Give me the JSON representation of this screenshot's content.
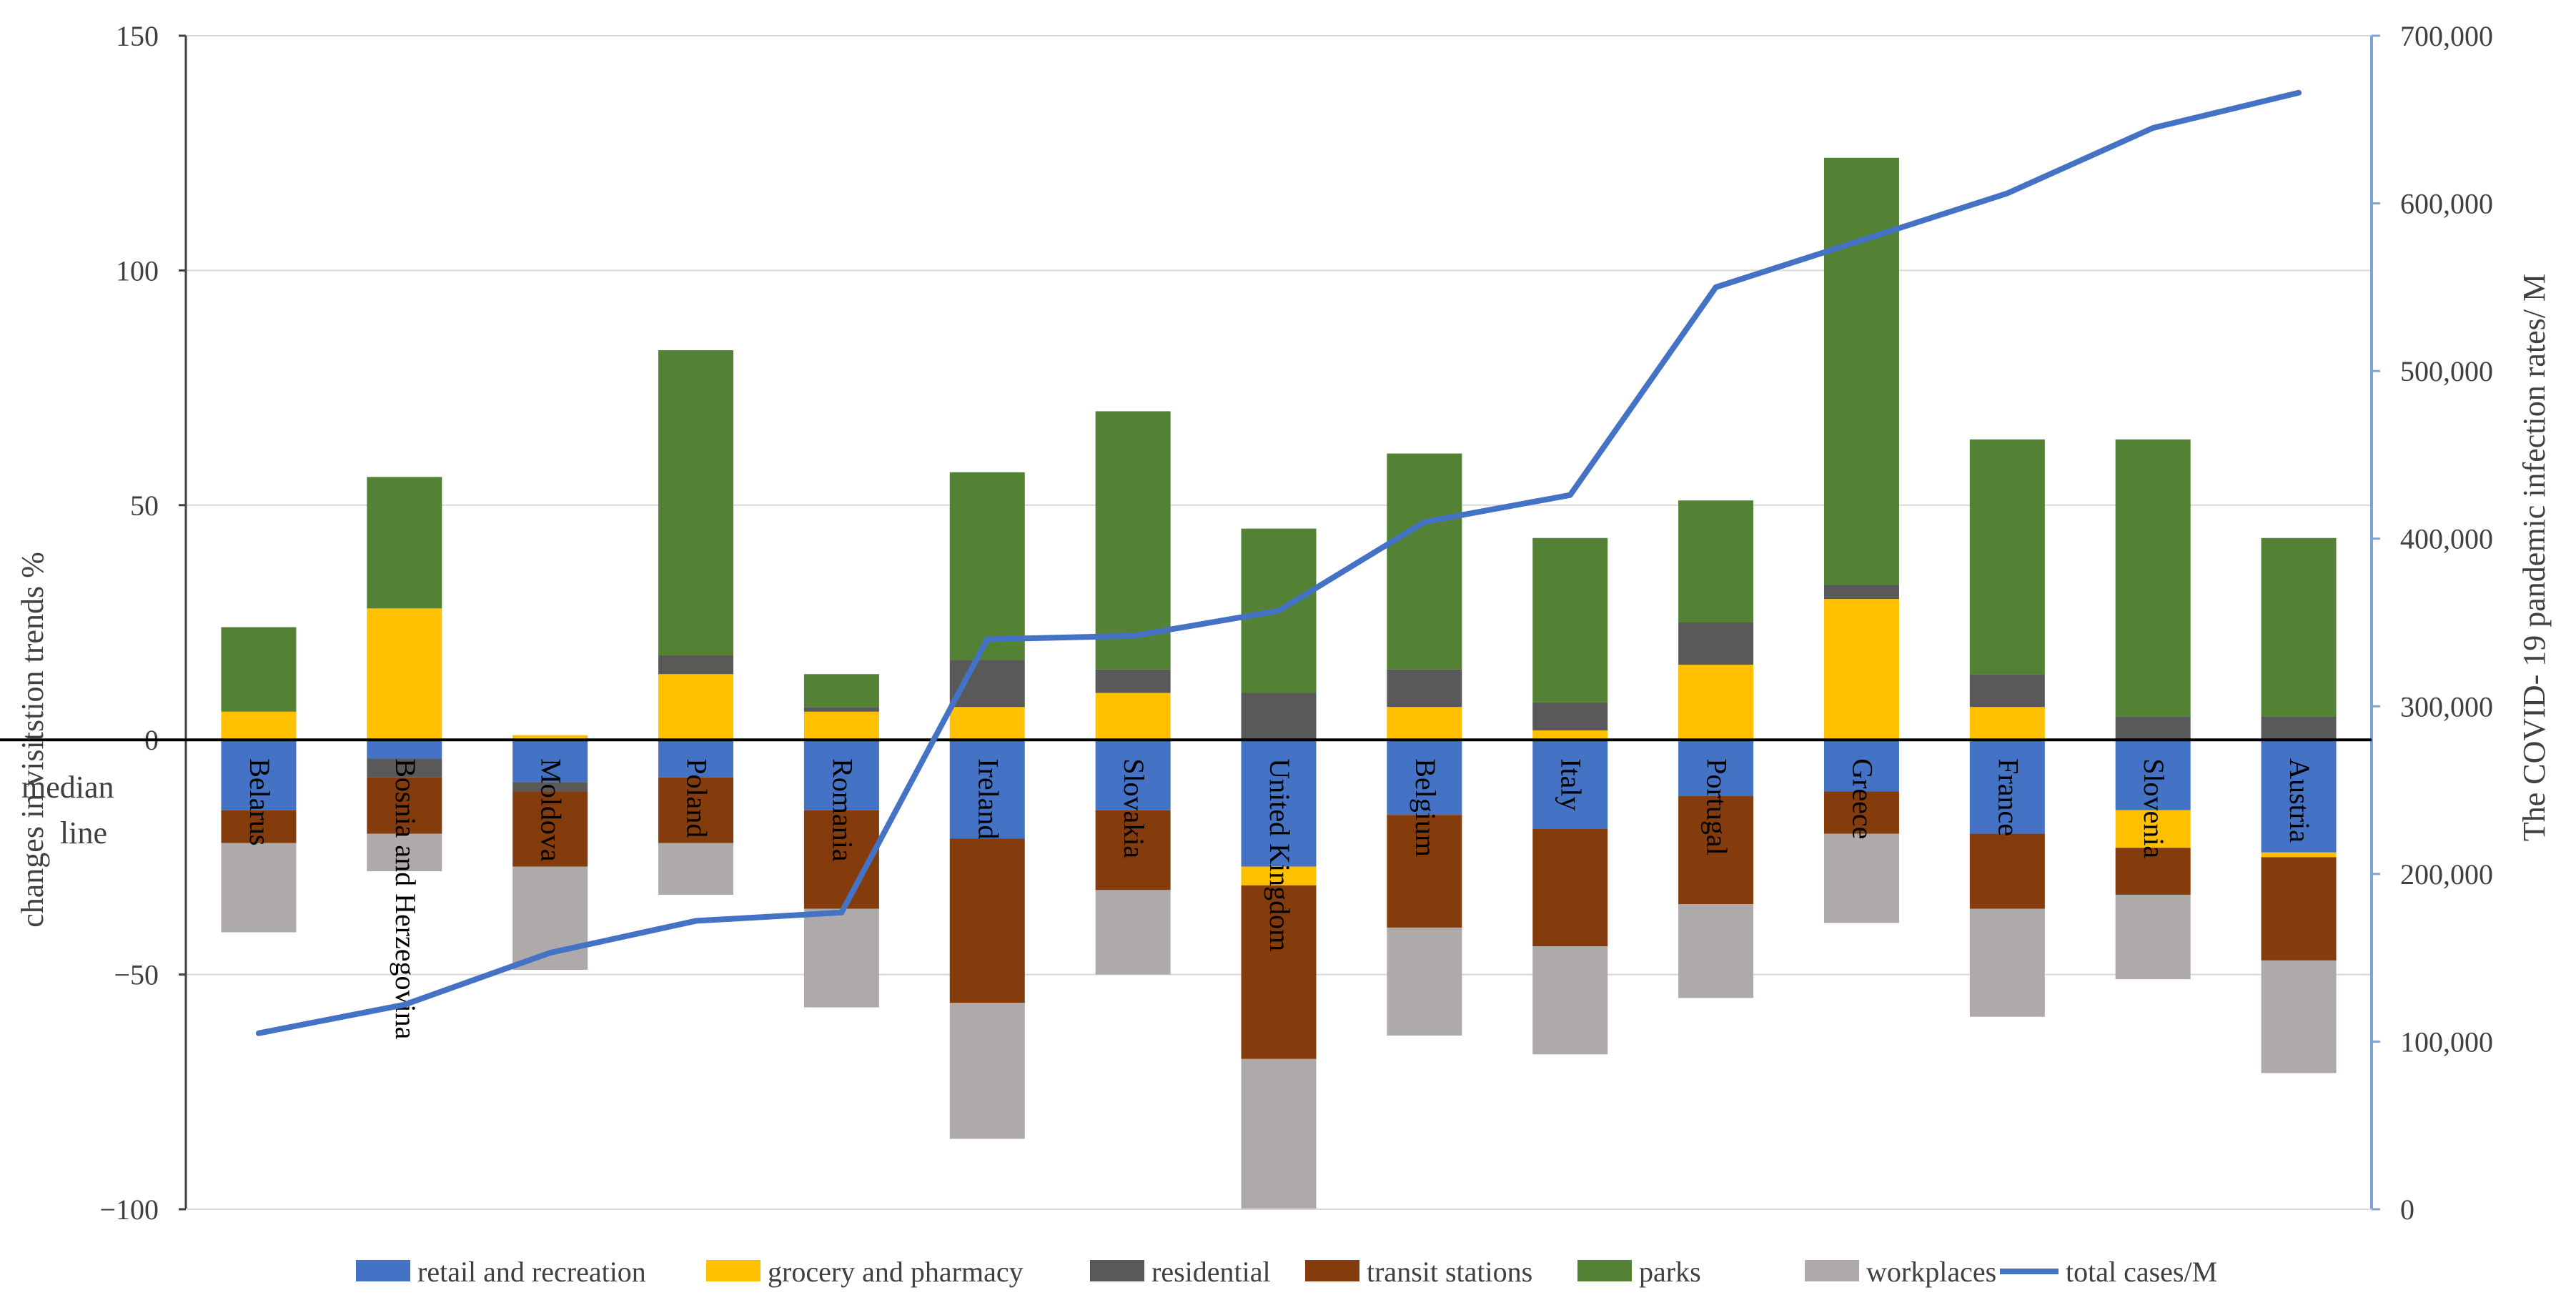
{
  "chart_data": {
    "type": "bar",
    "stacked": true,
    "categories": [
      "Belarus",
      "Bosnia and Herzegovina",
      "Moldova",
      "Poland",
      "Romania",
      "Ireland",
      "Slovakia",
      "United Kingdom",
      "Belgium",
      "Italy",
      "Portugal",
      "Greece",
      "France",
      "Slovenia",
      "Austria"
    ],
    "series": [
      {
        "name": "retail and recreation",
        "color": "#4472C4",
        "values": [
          -15,
          -4,
          -9,
          -8,
          -15,
          -21,
          -15,
          -27,
          -16,
          -19,
          -12,
          -11,
          -20,
          -15,
          -24
        ]
      },
      {
        "name": "grocery and pharmacy",
        "color": "#FFC000",
        "values": [
          6,
          28,
          1,
          14,
          6,
          7,
          10,
          -4,
          7,
          2,
          16,
          30,
          7,
          -8,
          -1
        ]
      },
      {
        "name": "residential",
        "color": "#595959",
        "values": [
          0,
          -4,
          -2,
          4,
          1,
          10,
          5,
          10,
          8,
          6,
          9,
          3,
          7,
          5,
          5
        ]
      },
      {
        "name": "transit stations",
        "color": "#843C0C",
        "values": [
          -7,
          -12,
          -16,
          -14,
          -21,
          -35,
          -17,
          -37,
          -24,
          -25,
          -23,
          -9,
          -16,
          -10,
          -22
        ]
      },
      {
        "name": "parks",
        "color": "#548235",
        "values": [
          18,
          28,
          0,
          65,
          7,
          40,
          55,
          35,
          46,
          35,
          26,
          91,
          50,
          59,
          38
        ]
      },
      {
        "name": "workplaces",
        "color": "#AEAAAA",
        "values": [
          -19,
          -8,
          -22,
          -11,
          -21,
          -29,
          -18,
          -32,
          -23,
          -23,
          -20,
          -19,
          -23,
          -18,
          -24
        ]
      }
    ],
    "line_series": {
      "name": "total cases/M",
      "color": "#4472C4",
      "axis": "right",
      "values": [
        105000,
        122000,
        153000,
        172000,
        177000,
        340000,
        342000,
        357000,
        410000,
        426000,
        550000,
        578000,
        606000,
        645000,
        666000
      ]
    },
    "ylabel": "changes in visitstion trends %",
    "y2label": "The COVID- 19 pandemic infection rates/ M",
    "ylim": [
      -100,
      150
    ],
    "y2lim": [
      0,
      700000
    ],
    "yticks": [
      "150",
      "100",
      "50",
      "0",
      "−50",
      "−100"
    ],
    "y2ticks": [
      "700,000",
      "600,000",
      "500,000",
      "400,000",
      "300,000",
      "200,000",
      "100,000",
      "0"
    ],
    "annotation": "median line",
    "legend_position": "bottom",
    "gridlines": true
  }
}
